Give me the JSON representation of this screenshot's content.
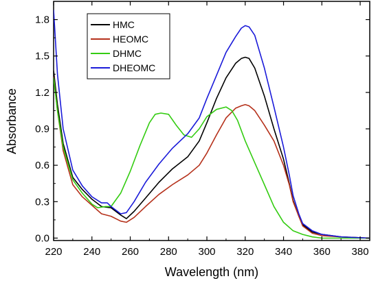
{
  "chart_data": {
    "type": "line",
    "xlabel": "Wavelength (nm)",
    "ylabel": "Absorbance",
    "xlim": [
      220,
      385
    ],
    "ylim": [
      -0.02,
      1.95
    ],
    "xticks": [
      220,
      240,
      260,
      280,
      300,
      320,
      340,
      360,
      380
    ],
    "yticks": [
      0.0,
      0.3,
      0.6,
      0.9,
      1.2,
      1.5,
      1.8
    ],
    "ytick_labels": [
      "0.0",
      "0.3",
      "0.6",
      "0.9",
      "1.2",
      "1.5",
      "1.8"
    ],
    "grid": false,
    "legend_position": "top-left",
    "series": [
      {
        "name": "HMC",
        "color": "#000000",
        "x": [
          220,
          222,
          225,
          230,
          235,
          240,
          245,
          250,
          255,
          258,
          262,
          268,
          275,
          282,
          290,
          296,
          300,
          305,
          310,
          315,
          318,
          320,
          322,
          325,
          330,
          335,
          340,
          343,
          345,
          348,
          350,
          355,
          360,
          370,
          385
        ],
        "y": [
          1.38,
          1.1,
          0.78,
          0.5,
          0.4,
          0.32,
          0.26,
          0.25,
          0.19,
          0.16,
          0.22,
          0.33,
          0.46,
          0.57,
          0.67,
          0.8,
          0.95,
          1.15,
          1.32,
          1.44,
          1.48,
          1.49,
          1.48,
          1.4,
          1.17,
          0.9,
          0.65,
          0.45,
          0.31,
          0.18,
          0.11,
          0.05,
          0.03,
          0.01,
          0.0
        ]
      },
      {
        "name": "HEOMC",
        "color": "#b5301a",
        "x": [
          220,
          222,
          225,
          230,
          235,
          240,
          245,
          250,
          255,
          258,
          262,
          268,
          275,
          282,
          290,
          296,
          300,
          305,
          310,
          315,
          318,
          320,
          322,
          325,
          330,
          335,
          340,
          343,
          345,
          348,
          350,
          355,
          360,
          370,
          385
        ],
        "y": [
          1.33,
          1.05,
          0.72,
          0.44,
          0.34,
          0.27,
          0.2,
          0.18,
          0.14,
          0.13,
          0.17,
          0.26,
          0.36,
          0.44,
          0.52,
          0.6,
          0.7,
          0.85,
          0.99,
          1.07,
          1.09,
          1.1,
          1.09,
          1.05,
          0.93,
          0.8,
          0.6,
          0.44,
          0.3,
          0.18,
          0.1,
          0.04,
          0.02,
          0.01,
          0.0
        ]
      },
      {
        "name": "DHMC",
        "color": "#33cc11",
        "x": [
          220,
          222,
          225,
          230,
          235,
          240,
          243,
          247,
          250,
          255,
          260,
          265,
          270,
          273,
          276,
          280,
          284,
          288,
          292,
          296,
          300,
          305,
          310,
          313,
          316,
          320,
          325,
          330,
          335,
          340,
          345,
          350,
          355,
          360,
          370,
          385
        ],
        "y": [
          1.32,
          1.05,
          0.75,
          0.48,
          0.37,
          0.28,
          0.25,
          0.26,
          0.26,
          0.37,
          0.55,
          0.76,
          0.95,
          1.02,
          1.03,
          1.02,
          0.93,
          0.85,
          0.83,
          0.9,
          1.0,
          1.06,
          1.08,
          1.05,
          0.97,
          0.8,
          0.62,
          0.44,
          0.26,
          0.13,
          0.06,
          0.03,
          0.01,
          0.0,
          0.0,
          0.0
        ]
      },
      {
        "name": "DHEOMC",
        "color": "#1a1ad9",
        "x": [
          220,
          222,
          225,
          230,
          235,
          240,
          245,
          248,
          250,
          255,
          258,
          262,
          268,
          275,
          282,
          290,
          296,
          300,
          305,
          310,
          315,
          318,
          320,
          322,
          325,
          330,
          335,
          340,
          343,
          345,
          348,
          350,
          355,
          360,
          370,
          385
        ],
        "y": [
          1.88,
          1.35,
          0.9,
          0.56,
          0.43,
          0.34,
          0.29,
          0.29,
          0.26,
          0.2,
          0.21,
          0.3,
          0.46,
          0.61,
          0.74,
          0.86,
          0.99,
          1.15,
          1.34,
          1.53,
          1.66,
          1.73,
          1.75,
          1.74,
          1.67,
          1.4,
          1.08,
          0.75,
          0.52,
          0.35,
          0.2,
          0.12,
          0.06,
          0.03,
          0.01,
          0.0
        ]
      }
    ]
  }
}
